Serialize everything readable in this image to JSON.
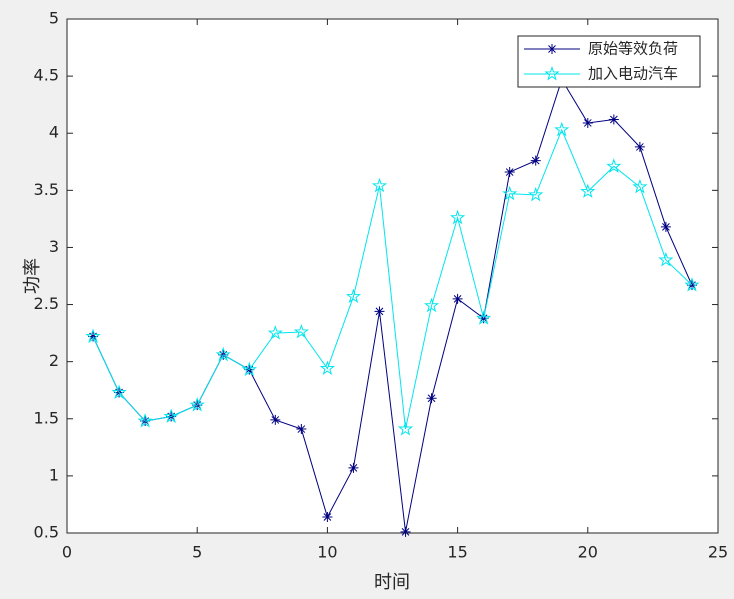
{
  "chart_data": {
    "type": "line",
    "x_label": "时间",
    "y_label": "功率",
    "x": [
      1,
      2,
      3,
      4,
      5,
      6,
      7,
      8,
      9,
      10,
      11,
      12,
      13,
      14,
      15,
      16,
      17,
      18,
      19,
      20,
      21,
      22,
      23,
      24
    ],
    "series": [
      {
        "name": "原始等效负荷",
        "color": "#000080",
        "marker": "asterisk",
        "values": [
          2.22,
          1.73,
          1.48,
          1.52,
          1.62,
          2.06,
          1.93,
          1.49,
          1.41,
          0.64,
          1.07,
          2.44,
          0.51,
          1.68,
          2.55,
          2.38,
          3.66,
          3.76,
          4.47,
          4.09,
          4.12,
          3.88,
          3.18,
          2.67
        ]
      },
      {
        "name": "加入电动汽车",
        "color": "#00e5ee",
        "marker": "star",
        "values": [
          2.22,
          1.73,
          1.48,
          1.52,
          1.62,
          2.06,
          1.93,
          2.25,
          2.26,
          1.94,
          2.57,
          3.54,
          1.41,
          2.49,
          3.26,
          2.38,
          3.47,
          3.46,
          4.03,
          3.49,
          3.71,
          3.53,
          2.89,
          2.67
        ]
      }
    ],
    "xlim": [
      0,
      25
    ],
    "xticks": [
      0,
      5,
      10,
      15,
      20,
      25
    ],
    "ylim": [
      0.5,
      5
    ],
    "yticks": [
      0.5,
      1,
      1.5,
      2,
      2.5,
      3,
      3.5,
      4,
      4.5,
      5
    ],
    "grid": false,
    "legend": "upper right"
  }
}
